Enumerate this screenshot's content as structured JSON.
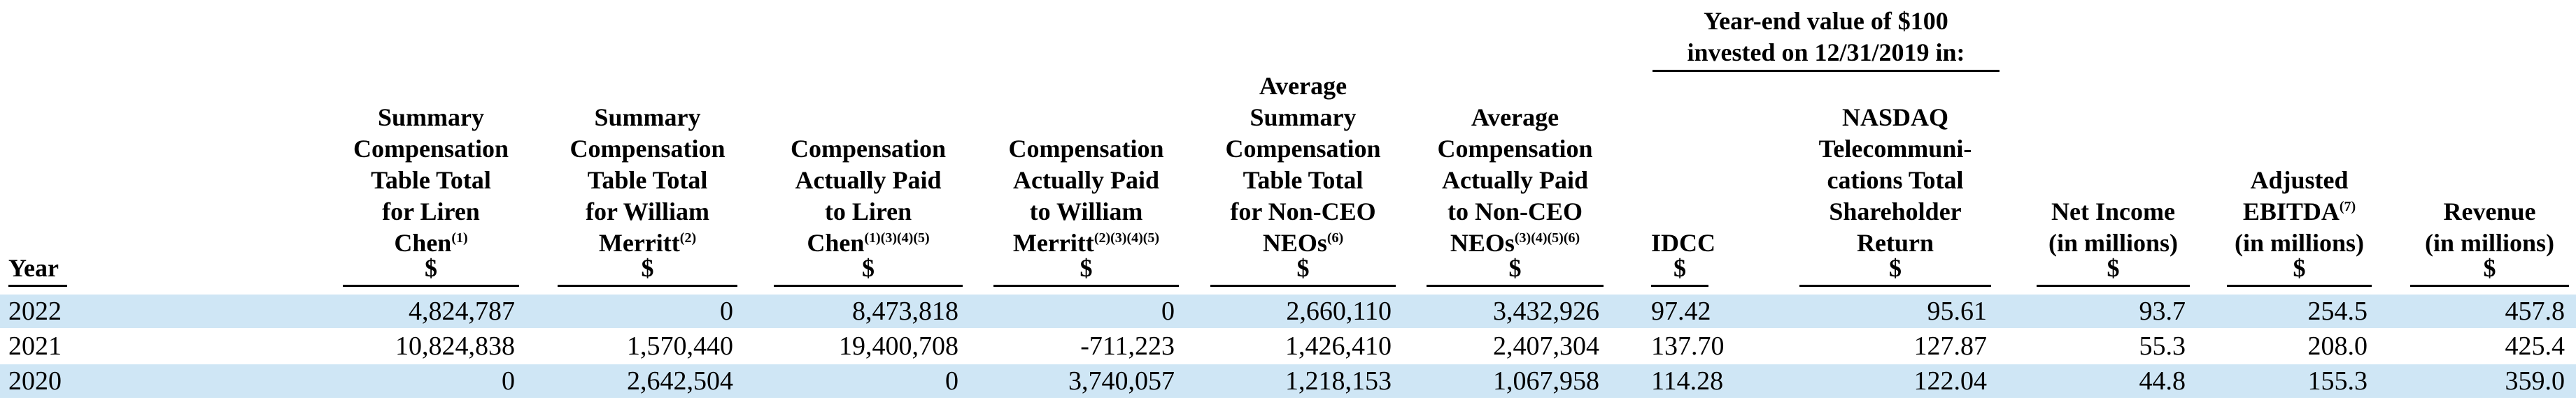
{
  "table": {
    "year_header": "Year",
    "group_header_line1": "Year-end value of $100",
    "group_header_line2": "invested on 12/31/2019 in:",
    "dollar_sign": "$",
    "columns": [
      {
        "lines": [
          "Summary",
          "Compensation",
          "Table Total",
          "for Liren"
        ],
        "last": "Chen",
        "sup": "(1)"
      },
      {
        "lines": [
          "Summary",
          "Compensation",
          "Table Total",
          "for William"
        ],
        "last": "Merritt",
        "sup": "(2)"
      },
      {
        "lines": [
          "Compensation",
          "Actually Paid",
          "to Liren"
        ],
        "last": "Chen",
        "sup": "(1)(3)(4)(5)"
      },
      {
        "lines": [
          "Compensation",
          "Actually Paid",
          "to William"
        ],
        "last": "Merritt",
        "sup": "(2)(3)(4)(5)"
      },
      {
        "lines": [
          "Average",
          "Summary",
          "Compensation",
          "Table Total",
          "for Non-CEO"
        ],
        "last": "NEOs",
        "sup": "(6)"
      },
      {
        "lines": [
          "Average",
          "Compensation",
          "Actually Paid",
          "to Non-CEO"
        ],
        "last": "NEOs",
        "sup": "(3)(4)(5)(6)"
      },
      {
        "lines": [],
        "last": "IDCC",
        "sup": ""
      },
      {
        "lines": [
          "NASDAQ",
          "Telecommuni-",
          "cations Total",
          "Shareholder"
        ],
        "last": "Return",
        "sup": ""
      },
      {
        "lines": [
          "Net Income"
        ],
        "last": "(in millions)",
        "sup": ""
      },
      {
        "lines": [
          "Adjusted",
          "EBITDA"
        ],
        "last": "(in millions)",
        "sup": "",
        "sup_line": "(7)"
      },
      {
        "lines": [
          "Revenue"
        ],
        "last": "(in millions)",
        "sup": ""
      }
    ],
    "rows": [
      {
        "year": "2022",
        "values": [
          "4,824,787",
          "0",
          "8,473,818",
          "0",
          "2,660,110",
          "3,432,926",
          "97.42",
          "95.61",
          "93.7",
          "254.5",
          "457.8"
        ]
      },
      {
        "year": "2021",
        "values": [
          "10,824,838",
          "1,570,440",
          "19,400,708",
          "-711,223",
          "1,426,410",
          "2,407,304",
          "137.70",
          "127.87",
          "55.3",
          "208.0",
          "425.4"
        ]
      },
      {
        "year": "2020",
        "values": [
          "0",
          "2,642,504",
          "0",
          "3,740,057",
          "1,218,153",
          "1,067,958",
          "114.28",
          "122.04",
          "44.8",
          "155.3",
          "359.0"
        ]
      }
    ],
    "row_shading": "#cfe6f5"
  }
}
